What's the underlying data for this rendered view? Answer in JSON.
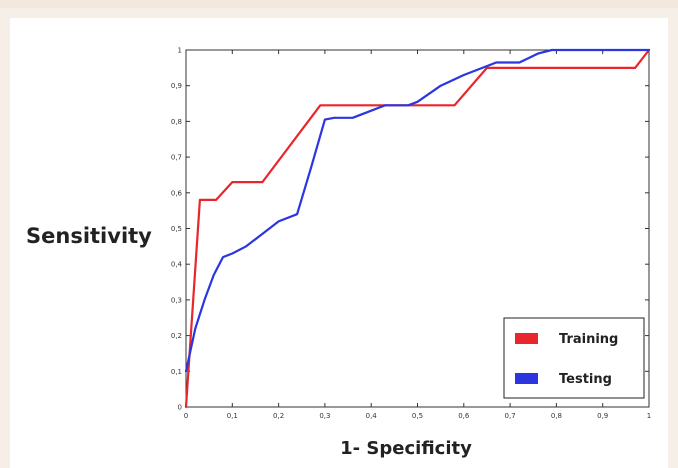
{
  "chart_data": {
    "type": "line",
    "title": "",
    "xlabel": "1- Specificity",
    "ylabel": "Sensitivity",
    "xlim": [
      0,
      1
    ],
    "ylim": [
      0,
      1
    ],
    "xticks": [
      "0",
      "0,1",
      "0,2",
      "0,3",
      "0,4",
      "0,5",
      "0,6",
      "0,7",
      "0,8",
      "0,9",
      "1"
    ],
    "yticks": [
      "0",
      "0,1",
      "0,2",
      "0,3",
      "0,4",
      "0,5",
      "0,6",
      "0,7",
      "0,8",
      "0,9",
      "1"
    ],
    "grid": false,
    "legend_position": "bottom-right",
    "series": [
      {
        "name": "Training",
        "color": "#e8262b",
        "x": [
          0,
          0.03,
          0.065,
          0.1,
          0.165,
          0.29,
          0.58,
          0.65,
          0.97,
          1.0
        ],
        "y": [
          0,
          0.58,
          0.58,
          0.63,
          0.63,
          0.845,
          0.845,
          0.95,
          0.95,
          1.0
        ]
      },
      {
        "name": "Testing",
        "color": "#2b36e0",
        "x": [
          0,
          0.02,
          0.04,
          0.06,
          0.08,
          0.1,
          0.13,
          0.17,
          0.2,
          0.24,
          0.27,
          0.3,
          0.32,
          0.36,
          0.4,
          0.43,
          0.48,
          0.5,
          0.55,
          0.6,
          0.64,
          0.67,
          0.72,
          0.76,
          0.79,
          1.0
        ],
        "y": [
          0.1,
          0.22,
          0.3,
          0.37,
          0.42,
          0.43,
          0.45,
          0.49,
          0.52,
          0.54,
          0.67,
          0.805,
          0.81,
          0.81,
          0.83,
          0.845,
          0.845,
          0.855,
          0.9,
          0.93,
          0.95,
          0.965,
          0.965,
          0.99,
          1.0,
          1.0
        ]
      }
    ]
  }
}
